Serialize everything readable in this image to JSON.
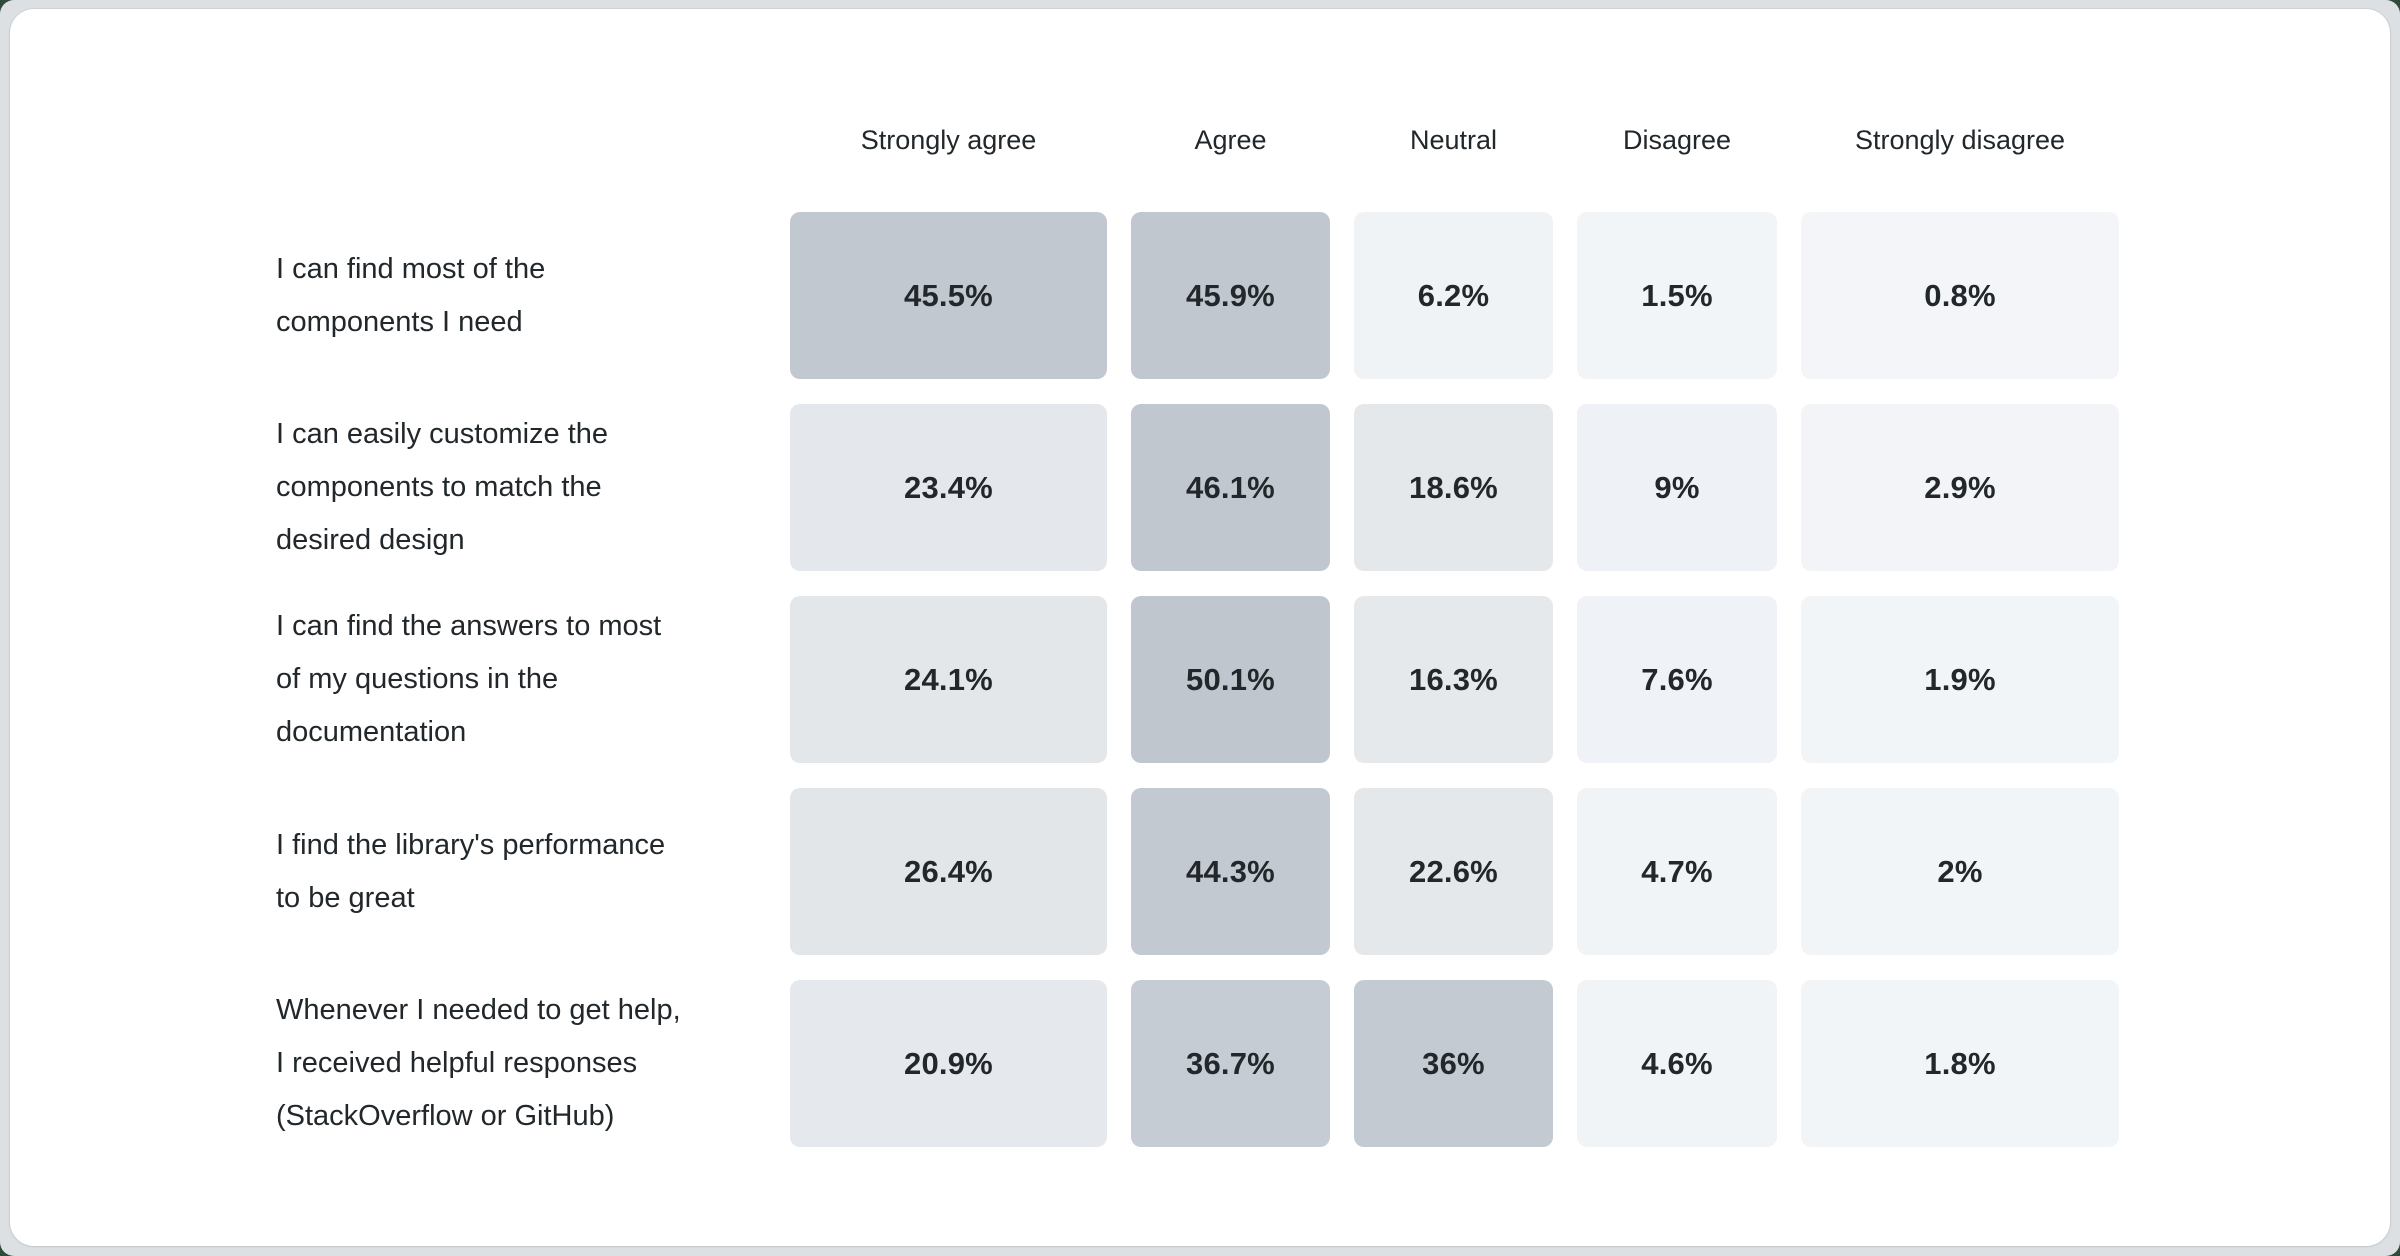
{
  "palette": {
    "page_edge": "#2e4b3c",
    "frame": "#dce0e3",
    "card": "#ffffff",
    "text": "#21272a"
  },
  "chart_data": {
    "type": "heatmap",
    "title": "",
    "value_unit": "%",
    "legend": "none",
    "columns": [
      "Strongly agree",
      "Agree",
      "Neutral",
      "Disagree",
      "Strongly disagree"
    ],
    "rows": [
      {
        "label": "I can find most of the\ncomponents I need",
        "values": [
          45.5,
          45.9,
          6.2,
          1.5,
          0.8
        ],
        "cells": [
          {
            "text": "45.5%",
            "color": "#c2c8d0"
          },
          {
            "text": "45.9%",
            "color": "#c1c7cf"
          },
          {
            "text": "6.2%",
            "color": "#f0f3f6"
          },
          {
            "text": "1.5%",
            "color": "#f2f5f8"
          },
          {
            "text": "0.8%",
            "color": "#f3f5f8"
          }
        ]
      },
      {
        "label": "I can easily customize the\ncomponents to match the\ndesired design",
        "values": [
          23.4,
          46.1,
          18.6,
          9,
          2.9
        ],
        "cells": [
          {
            "text": "23.4%",
            "color": "#e4e7eb"
          },
          {
            "text": "46.1%",
            "color": "#c1c7cf"
          },
          {
            "text": "18.6%",
            "color": "#e5e8eb"
          },
          {
            "text": "9%",
            "color": "#eef1f5"
          },
          {
            "text": "2.9%",
            "color": "#f2f4f7"
          }
        ]
      },
      {
        "label": "I can find the answers to most\nof my questions in the\ndocumentation",
        "values": [
          24.1,
          50.1,
          16.3,
          7.6,
          1.9
        ],
        "cells": [
          {
            "text": "24.1%",
            "color": "#e3e7ea"
          },
          {
            "text": "50.1%",
            "color": "#bfc6ce"
          },
          {
            "text": "16.3%",
            "color": "#e6e9ec"
          },
          {
            "text": "7.6%",
            "color": "#eff2f6"
          },
          {
            "text": "1.9%",
            "color": "#f2f5f8"
          }
        ]
      },
      {
        "label": "I find the library's performance\nto be great",
        "values": [
          26.4,
          44.3,
          22.6,
          4.7,
          2
        ],
        "cells": [
          {
            "text": "26.4%",
            "color": "#e2e6e9"
          },
          {
            "text": "44.3%",
            "color": "#c3c9d1"
          },
          {
            "text": "22.6%",
            "color": "#e4e8eb"
          },
          {
            "text": "4.7%",
            "color": "#f1f4f6"
          },
          {
            "text": "2%",
            "color": "#f2f5f8"
          }
        ]
      },
      {
        "label": "Whenever I needed to get help,\nI received helpful responses\n(StackOverflow or GitHub)",
        "values": [
          20.9,
          36.7,
          36,
          4.6,
          1.8
        ],
        "cells": [
          {
            "text": "20.9%",
            "color": "#e5e8ec"
          },
          {
            "text": "36.7%",
            "color": "#c6ccd3"
          },
          {
            "text": "36%",
            "color": "#c4cad2"
          },
          {
            "text": "4.6%",
            "color": "#f1f4f7"
          },
          {
            "text": "1.8%",
            "color": "#f2f5f8"
          }
        ]
      }
    ]
  }
}
